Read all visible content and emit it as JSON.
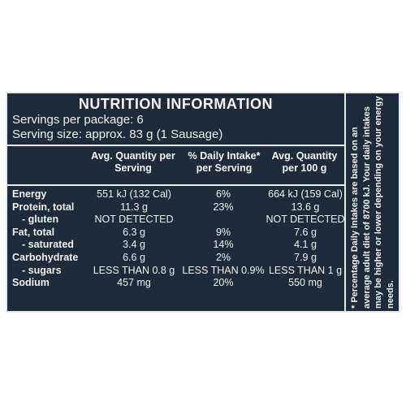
{
  "title": "NUTRITION INFORMATION",
  "servings_per_package": "Servings per package: 6",
  "serving_size": "Serving size: approx. 83 g (1 Sausage)",
  "headers": {
    "col1": "Avg. Quantity per Serving",
    "col2": "% Daily Intake* per Serving",
    "col3": "Avg. Quantity per 100 g"
  },
  "rows": [
    {
      "label": "Energy",
      "per_serving": "551 kJ (132 Cal)",
      "daily_intake": "6%",
      "per_100g": "664 kJ (159 Cal)"
    },
    {
      "label": "Protein, total",
      "per_serving": "11.3 g",
      "daily_intake": "23%",
      "per_100g": "13.6 g"
    },
    {
      "label": "- gluten",
      "per_serving": "NOT DETECTED",
      "daily_intake": "",
      "per_100g": "NOT DETECTED"
    },
    {
      "label": "Fat, total",
      "per_serving": "6.3 g",
      "daily_intake": "9%",
      "per_100g": "7.6 g"
    },
    {
      "label": "- saturated",
      "per_serving": "3.4 g",
      "daily_intake": "14%",
      "per_100g": "4.1 g"
    },
    {
      "label": "Carbohydrate",
      "per_serving": "6.6 g",
      "daily_intake": "2%",
      "per_100g": "7.9 g"
    },
    {
      "label": "- sugars",
      "per_serving": "LESS THAN 0.8 g",
      "daily_intake": "LESS THAN 0.9%",
      "per_100g": "LESS THAN 1 g"
    },
    {
      "label": "Sodium",
      "per_serving": "457 mg",
      "daily_intake": "20%",
      "per_100g": "550 mg"
    }
  ],
  "footnote": "* Percentage Daily Intakes are based on an average adult diet of 8700 kJ. Your daily intakes may be higher or lower depending on your energy needs.",
  "colors": {
    "panel_background": "#1f2a3a",
    "text": "#f1f1ef",
    "rules": "#e9e9e6"
  }
}
